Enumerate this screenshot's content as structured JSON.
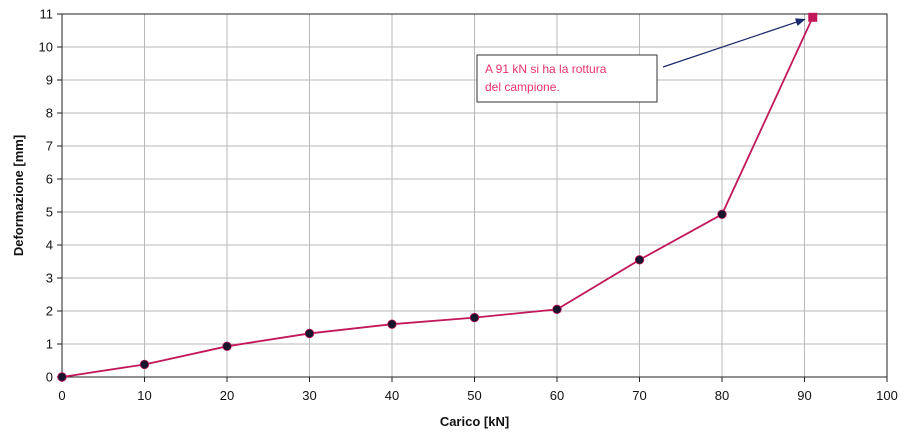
{
  "chart_data": {
    "type": "line",
    "xlabel": "Carico [kN]",
    "ylabel": "Deformazione [mm]",
    "xlim": [
      0,
      100
    ],
    "ylim": [
      0,
      11
    ],
    "xticks": [
      0,
      10,
      20,
      30,
      40,
      50,
      60,
      70,
      80,
      90,
      100
    ],
    "yticks": [
      0,
      1,
      2,
      3,
      4,
      5,
      6,
      7,
      8,
      9,
      10,
      11
    ],
    "grid": true,
    "series": [
      {
        "x": [
          0,
          10,
          20,
          30,
          40,
          50,
          60,
          70,
          80,
          91
        ],
        "y": [
          0,
          0.38,
          0.93,
          1.32,
          1.6,
          1.8,
          2.05,
          3.55,
          4.93,
          10.9
        ],
        "line_color": "#c2185b",
        "marker_color": "#15152e",
        "last_marker_color": "#c2185b"
      }
    ],
    "annotation": {
      "lines": [
        "A 91 kN si ha la rottura",
        "del campione."
      ],
      "arrow_target": {
        "x": 91,
        "y": 10.9
      },
      "text_color": "#e8336b",
      "arrow_color": "#1a2a6c"
    }
  }
}
